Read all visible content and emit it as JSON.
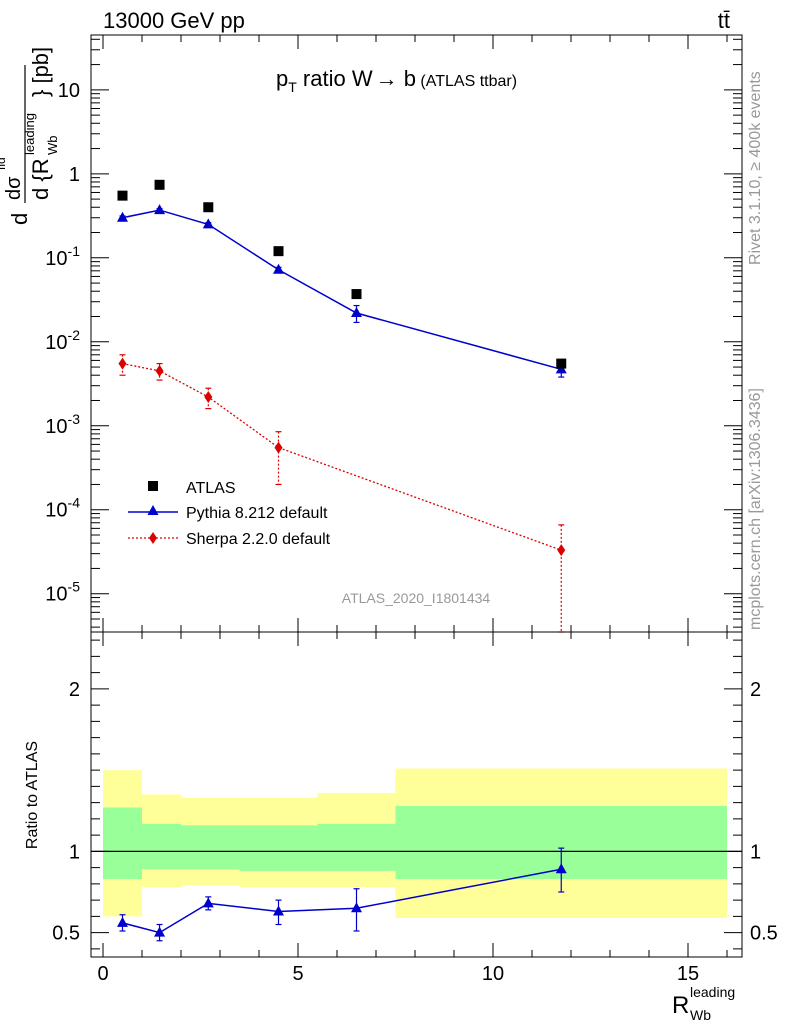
{
  "header": {
    "energy_label": "13000 GeV pp",
    "process_label": "tt̄"
  },
  "side_labels": {
    "rivet": "Rivet 3.1.10, ≥ 400k events",
    "mcplots": "mcplots.cern.ch [arXiv:1306.3436]"
  },
  "chart_data": {
    "type": "scatter",
    "title": "p_T ratio W → b (ATLAS ttbar)",
    "title_parts": {
      "p": "p",
      "sub": "T",
      "rest": " ratio W",
      "arrow": "→",
      "b": " b",
      "small": " (ATLAS ttbar)"
    },
    "watermark": "ATLAS_2020_I1801434",
    "yscale": "log",
    "ylim": [
      3.5e-06,
      45
    ],
    "xlim": [
      -0.4,
      16.4
    ],
    "ylabel_parts": {
      "d1": "d",
      "sigma": "dσ",
      "fid": "fid",
      "d2": "d {R",
      "sup": "leading",
      "sub": "Wb",
      "close": "} [pb]"
    },
    "xlabel_parts": {
      "main": "R",
      "sup": "leading",
      "sub": "Wb"
    },
    "x_ticks": [
      "0",
      "5",
      "10",
      "15"
    ],
    "x_tick_values": [
      0,
      5,
      10,
      15
    ],
    "y_ticks": [
      {
        "base": "10",
        "exp": "-5",
        "value": 1e-05
      },
      {
        "base": "10",
        "exp": "-4",
        "value": 0.0001
      },
      {
        "base": "10",
        "exp": "-3",
        "value": 0.001
      },
      {
        "base": "10",
        "exp": "-2",
        "value": 0.01
      },
      {
        "base": "10",
        "exp": "-1",
        "value": 0.1
      },
      {
        "base": "1",
        "exp": "",
        "value": 1
      },
      {
        "base": "10",
        "exp": "",
        "value": 10
      }
    ],
    "legend": {
      "placement": "lower-left",
      "entries": [
        "ATLAS",
        "Pythia 8.212 default",
        "Sherpa 2.2.0 default"
      ]
    },
    "bin_edges": [
      0,
      1,
      2,
      3.5,
      5.5,
      7.5,
      16
    ],
    "series": [
      {
        "name": "ATLAS",
        "color": "#000000",
        "marker": "square",
        "x": [
          0.5,
          1.45,
          2.7,
          4.5,
          6.5,
          11.75
        ],
        "y": [
          0.55,
          0.74,
          0.4,
          0.12,
          0.037,
          0.0055
        ]
      },
      {
        "name": "Pythia 8.212 default",
        "color": "#0000cc",
        "marker": "triangle",
        "x": [
          0.5,
          1.45,
          2.7,
          4.5,
          6.5,
          11.75
        ],
        "y": [
          0.3,
          0.37,
          0.25,
          0.072,
          0.022,
          0.0047
        ],
        "err_lo": [
          0.015,
          0.015,
          0.012,
          0.005,
          0.005,
          0.0009
        ],
        "err_hi": [
          0.015,
          0.015,
          0.012,
          0.005,
          0.005,
          0.0009
        ]
      },
      {
        "name": "Sherpa 2.2.0 default",
        "color": "#dd0000",
        "marker": "diamond",
        "x": [
          0.5,
          1.45,
          2.7,
          4.5,
          6.5,
          11.75
        ],
        "y": [
          0.0055,
          0.0045,
          0.0022,
          0.00055,
          null,
          3.3e-05
        ],
        "err_lo": [
          0.0015,
          0.001,
          0.0006,
          0.00035,
          null,
          3e-05
        ],
        "err_hi": [
          0.0015,
          0.001,
          0.0006,
          0.0003,
          null,
          3.3e-05
        ]
      }
    ],
    "ratio_panel": {
      "ylabel": "Ratio to ATLAS",
      "ylim": [
        0.35,
        2.35
      ],
      "y_ticks": [
        "0.5",
        "1",
        "2"
      ],
      "y_tick_values": [
        0.5,
        1,
        2
      ],
      "band_inner": {
        "color": "#99ff99",
        "lo": [
          0.83,
          0.89,
          0.89,
          0.88,
          0.88,
          0.83
        ],
        "hi": [
          1.27,
          1.17,
          1.16,
          1.16,
          1.17,
          1.28
        ]
      },
      "band_outer": {
        "color": "#ffff99",
        "lo": [
          0.6,
          0.78,
          0.79,
          0.78,
          0.78,
          0.59
        ],
        "hi": [
          1.5,
          1.35,
          1.33,
          1.33,
          1.36,
          1.51
        ]
      },
      "pythia_ratio": [
        0.56,
        0.5,
        0.68,
        0.63,
        0.65,
        0.89
      ],
      "pythia_ratio_err_lo": [
        0.05,
        0.05,
        0.04,
        0.08,
        0.14,
        0.14
      ],
      "pythia_ratio_err_hi": [
        0.05,
        0.05,
        0.04,
        0.07,
        0.12,
        0.13
      ]
    }
  }
}
